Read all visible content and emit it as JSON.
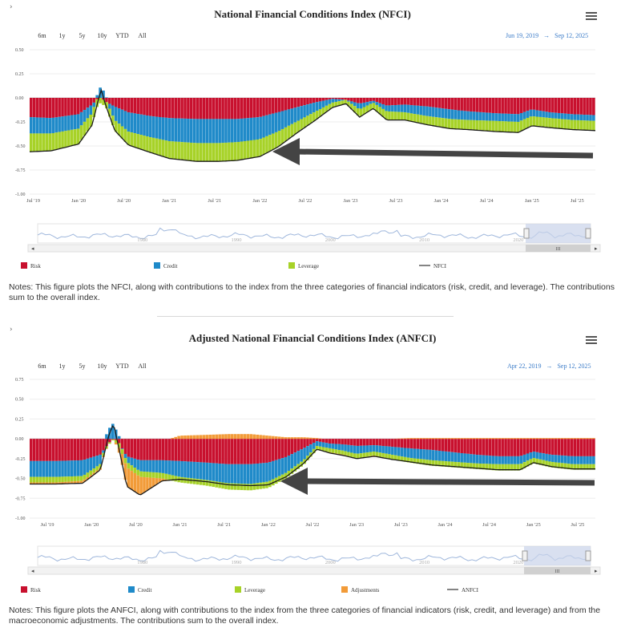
{
  "charts": [
    {
      "title": "National Financial Conditions Index (NFCI)",
      "range_buttons": [
        "6m",
        "1y",
        "5y",
        "10y",
        "YTD",
        "All"
      ],
      "date_from": "Jun 19, 2019",
      "date_arrow": "→",
      "date_to": "Sep 12, 2025",
      "navigator_labels": [
        "1980",
        "1990",
        "2000",
        "2010",
        "2020"
      ],
      "scroll_grip": "III",
      "notes": "Notes: This figure plots the NFCI, along with contributions to the index from the three categories of financial indicators (risk, credit, and leverage). The contributions sum to the overall index."
    },
    {
      "title": "Adjusted National Financial Conditions Index (ANFCI)",
      "range_buttons": [
        "6m",
        "1y",
        "5y",
        "10y",
        "YTD",
        "All"
      ],
      "date_from": "Apr 22, 2019",
      "date_arrow": "→",
      "date_to": "Sep 12, 2025",
      "navigator_labels": [
        "1980",
        "1990",
        "2000",
        "2010",
        "2020"
      ],
      "scroll_grip": "III",
      "notes": "Notes: This figure plots the ANFCI, along with contributions to the index from the three categories of financial indicators (risk, credit, and leverage) and from the macroeconomic adjustments. The contributions sum to the overall index."
    }
  ],
  "chart_data": [
    {
      "type": "bar",
      "title": "National Financial Conditions Index (NFCI)",
      "x_tick_labels": [
        "Jul '19",
        "Jan '20",
        "Jul '20",
        "Jan '21",
        "Jul '21",
        "Jan '22",
        "Jul '22",
        "Jan '23",
        "Jul '23",
        "Jan '24",
        "Jul '24",
        "Jan '25",
        "Jul '25"
      ],
      "y_tick_labels": [
        "0.50",
        "0.25",
        "0.00",
        "-0.25",
        "-0.50",
        "-0.75",
        "-1.00"
      ],
      "ylim": [
        -1.0,
        0.5
      ],
      "x_range": [
        "2019-06",
        "2025-09"
      ],
      "key_dates": [
        2019.46,
        2019.7,
        2020.0,
        2020.15,
        2020.22,
        2020.25,
        2020.3,
        2020.4,
        2020.55,
        2020.8,
        2021.0,
        2021.3,
        2021.55,
        2021.75,
        2022.0,
        2022.2,
        2022.4,
        2022.6,
        2022.8,
        2022.95,
        2023.1,
        2023.25,
        2023.4,
        2023.6,
        2023.85,
        2024.1,
        2024.3,
        2024.6,
        2024.85,
        2025.0,
        2025.2,
        2025.45,
        2025.7
      ],
      "series": [
        {
          "name": "Risk",
          "color": "#c8102e",
          "values": [
            -0.2,
            -0.21,
            -0.17,
            -0.07,
            0.0,
            0.0,
            -0.04,
            -0.09,
            -0.15,
            -0.19,
            -0.21,
            -0.22,
            -0.22,
            -0.22,
            -0.2,
            -0.15,
            -0.1,
            -0.05,
            -0.01,
            -0.02,
            -0.06,
            -0.03,
            -0.08,
            -0.07,
            -0.09,
            -0.12,
            -0.14,
            -0.16,
            -0.17,
            -0.12,
            -0.15,
            -0.17,
            -0.18
          ]
        },
        {
          "name": "Credit",
          "color": "#1f8ac9",
          "values": [
            -0.17,
            -0.16,
            -0.15,
            -0.09,
            0.06,
            0.13,
            0.02,
            -0.14,
            -0.2,
            -0.22,
            -0.24,
            -0.25,
            -0.25,
            -0.24,
            -0.23,
            -0.2,
            -0.15,
            -0.1,
            -0.04,
            -0.0,
            -0.06,
            -0.02,
            -0.06,
            -0.08,
            -0.1,
            -0.1,
            -0.09,
            -0.08,
            -0.08,
            -0.07,
            -0.06,
            -0.06,
            -0.06
          ]
        },
        {
          "name": "Leverage",
          "color": "#a7d228",
          "values": [
            -0.19,
            -0.18,
            -0.16,
            -0.12,
            -0.07,
            -0.05,
            -0.06,
            -0.11,
            -0.14,
            -0.16,
            -0.18,
            -0.19,
            -0.19,
            -0.19,
            -0.18,
            -0.16,
            -0.12,
            -0.09,
            -0.05,
            -0.04,
            -0.08,
            -0.06,
            -0.09,
            -0.08,
            -0.09,
            -0.1,
            -0.1,
            -0.11,
            -0.11,
            -0.1,
            -0.1,
            -0.1,
            -0.1
          ]
        }
      ],
      "line": {
        "name": "NFCI",
        "color": "#1a1a1a",
        "values": [
          -0.56,
          -0.55,
          -0.48,
          -0.28,
          -0.01,
          0.08,
          -0.08,
          -0.34,
          -0.49,
          -0.57,
          -0.63,
          -0.66,
          -0.66,
          -0.65,
          -0.61,
          -0.51,
          -0.37,
          -0.24,
          -0.1,
          -0.06,
          -0.2,
          -0.11,
          -0.23,
          -0.23,
          -0.28,
          -0.32,
          -0.33,
          -0.35,
          -0.36,
          -0.29,
          -0.31,
          -0.33,
          -0.34
        ]
      },
      "legend": [
        "Risk",
        "Credit",
        "Leverage",
        "NFCI"
      ],
      "annotation": "arrow pointing left"
    },
    {
      "type": "bar",
      "title": "Adjusted National Financial Conditions Index (ANFCI)",
      "x_tick_labels": [
        "Jul '19",
        "Jan '20",
        "Jul '20",
        "Jan '21",
        "Jul '21",
        "Jan '22",
        "Jul '22",
        "Jan '23",
        "Jul '23",
        "Jan '24",
        "Jul '24",
        "Jan '25",
        "Jul '25"
      ],
      "y_tick_labels": [
        "0.75",
        "0.50",
        "0.25",
        "0.00",
        "-0.25",
        "-0.50",
        "-0.75",
        "-1.00"
      ],
      "ylim": [
        -1.0,
        0.75
      ],
      "x_range": [
        "2019-04",
        "2025-09"
      ],
      "key_dates": [
        2019.3,
        2019.6,
        2019.9,
        2020.1,
        2020.2,
        2020.25,
        2020.3,
        2020.4,
        2020.55,
        2020.8,
        2021.0,
        2021.3,
        2021.55,
        2021.8,
        2022.0,
        2022.2,
        2022.4,
        2022.55,
        2022.7,
        2022.85,
        2023.0,
        2023.2,
        2023.4,
        2023.6,
        2023.85,
        2024.1,
        2024.35,
        2024.6,
        2024.85,
        2025.0,
        2025.2,
        2025.45,
        2025.7
      ],
      "series": [
        {
          "name": "Risk",
          "color": "#c8102e",
          "values": [
            -0.28,
            -0.28,
            -0.27,
            -0.2,
            -0.05,
            0.0,
            -0.03,
            -0.22,
            -0.27,
            -0.27,
            -0.28,
            -0.3,
            -0.32,
            -0.32,
            -0.3,
            -0.23,
            -0.12,
            -0.03,
            -0.06,
            -0.07,
            -0.09,
            -0.08,
            -0.1,
            -0.12,
            -0.14,
            -0.17,
            -0.2,
            -0.22,
            -0.22,
            -0.16,
            -0.2,
            -0.22,
            -0.22
          ]
        },
        {
          "name": "Credit",
          "color": "#1f8ac9",
          "values": [
            -0.2,
            -0.2,
            -0.2,
            -0.12,
            0.13,
            0.2,
            0.05,
            -0.07,
            -0.14,
            -0.16,
            -0.2,
            -0.22,
            -0.24,
            -0.25,
            -0.24,
            -0.2,
            -0.15,
            -0.06,
            -0.06,
            -0.08,
            -0.1,
            -0.08,
            -0.1,
            -0.12,
            -0.13,
            -0.12,
            -0.11,
            -0.1,
            -0.1,
            -0.08,
            -0.09,
            -0.1,
            -0.1
          ]
        },
        {
          "name": "Leverage",
          "color": "#a7d228",
          "values": [
            -0.07,
            -0.07,
            -0.06,
            -0.05,
            -0.02,
            -0.01,
            -0.05,
            -0.07,
            -0.07,
            -0.07,
            -0.07,
            -0.07,
            -0.08,
            -0.08,
            -0.08,
            -0.07,
            -0.06,
            -0.05,
            -0.05,
            -0.05,
            -0.06,
            -0.05,
            -0.06,
            -0.06,
            -0.07,
            -0.07,
            -0.07,
            -0.08,
            -0.08,
            -0.07,
            -0.07,
            -0.07,
            -0.07
          ]
        },
        {
          "name": "Adjustments",
          "color": "#f29b38",
          "values": [
            -0.02,
            -0.02,
            -0.03,
            -0.02,
            0.0,
            0.0,
            -0.04,
            -0.24,
            -0.23,
            -0.03,
            0.04,
            0.05,
            0.06,
            0.06,
            0.04,
            0.02,
            0.02,
            0.01,
            -0.01,
            -0.01,
            -0.0,
            -0.01,
            0.0,
            0.01,
            0.01,
            0.01,
            0.01,
            0.01,
            0.01,
            0.01,
            0.01,
            0.01,
            0.01
          ]
        }
      ],
      "line": {
        "name": "ANFCI",
        "color": "#1a1a1a",
        "values": [
          -0.57,
          -0.57,
          -0.56,
          -0.39,
          0.06,
          0.19,
          -0.07,
          -0.6,
          -0.71,
          -0.53,
          -0.51,
          -0.54,
          -0.58,
          -0.59,
          -0.58,
          -0.48,
          -0.31,
          -0.13,
          -0.18,
          -0.21,
          -0.25,
          -0.22,
          -0.26,
          -0.29,
          -0.33,
          -0.35,
          -0.37,
          -0.39,
          -0.39,
          -0.3,
          -0.35,
          -0.38,
          -0.38
        ]
      },
      "legend": [
        "Risk",
        "Credit",
        "Leverage",
        "Adjustments",
        "ANFCI"
      ],
      "annotation": "arrow pointing left"
    }
  ]
}
